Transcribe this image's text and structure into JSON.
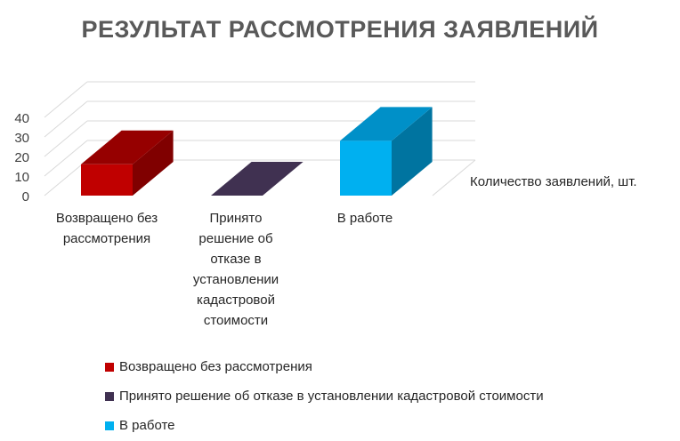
{
  "chart_data": {
    "type": "bar",
    "title": "РЕЗУЛЬТАТ РАССМОТРЕНИЯ ЗАЯВЛЕНИЙ",
    "categories": [
      "Возвращено без рассмотрения",
      "Принято решение об отказе в установлении кадастровой стоимости",
      "В работе"
    ],
    "category_axis_labels": [
      [
        "Возвращено без",
        "рассмотрения"
      ],
      [
        "Принято",
        "решение об",
        "отказе в",
        "установлении",
        "кадастровой",
        "стоимости"
      ],
      [
        "В работе"
      ]
    ],
    "series": [
      {
        "name": "Количество заявлений, шт.",
        "values": [
          16,
          0,
          28
        ]
      }
    ],
    "yticks": [
      "0",
      "10",
      "20",
      "30",
      "40"
    ],
    "ylim": [
      0,
      40
    ],
    "legend": "bottom",
    "grid": true,
    "style": "3d-column",
    "colors": [
      {
        "front": "#c00000",
        "side": "#800000",
        "top": "#960000"
      },
      {
        "front": "#403151",
        "side": "#2a1f38",
        "top": "#403151"
      },
      {
        "front": "#00b0f0",
        "side": "#0074a0",
        "top": "#0090c8"
      }
    ]
  }
}
